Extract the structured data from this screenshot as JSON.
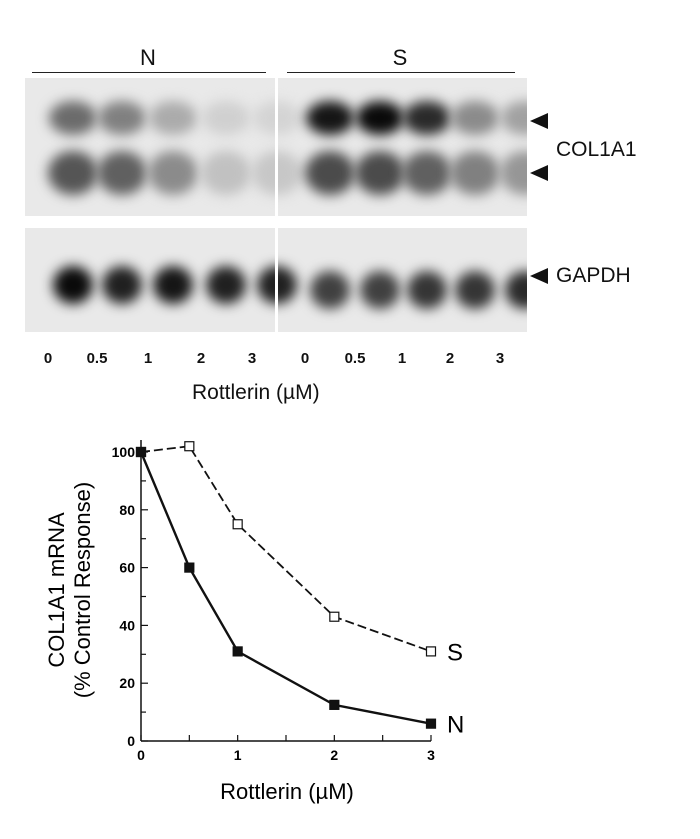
{
  "blot": {
    "groups": [
      {
        "label": "N"
      },
      {
        "label": "S"
      }
    ],
    "lane_labels": [
      "0",
      "0.5",
      "1",
      "2",
      "3",
      "0",
      "0.5",
      "1",
      "2",
      "3"
    ],
    "xlabel": "Rottlerin (µM)",
    "bands": {
      "col1a1_label": "COL1A1",
      "gapdh_label": "GAPDH"
    },
    "col1a1_intensity_upper": [
      0.55,
      0.45,
      0.25,
      0.08,
      0.06,
      0.95,
      1.0,
      0.85,
      0.4,
      0.3
    ],
    "col1a1_intensity_lower": [
      0.65,
      0.6,
      0.4,
      0.15,
      0.12,
      0.7,
      0.7,
      0.6,
      0.45,
      0.35
    ],
    "gapdh_intensity": [
      1.0,
      0.9,
      0.95,
      0.9,
      0.9,
      0.75,
      0.75,
      0.8,
      0.8,
      0.85
    ]
  },
  "chart_data": {
    "type": "line",
    "title": "",
    "xlabel": "Rottlerin (µM)",
    "ylabel": "COL1A1 mRNA (% Control Response)",
    "ylabel_line1": "COL1A1 mRNA",
    "ylabel_line2": "(% Control Response)",
    "x": [
      0,
      0.5,
      1,
      2,
      3
    ],
    "xlim": [
      0,
      3
    ],
    "ylim": [
      0,
      100
    ],
    "xticks": [
      "0",
      "1",
      "2",
      "3"
    ],
    "yticks": [
      "0",
      "20",
      "40",
      "60",
      "80",
      "100"
    ],
    "grid": false,
    "series": [
      {
        "name": "N",
        "values": [
          100,
          60,
          31,
          12.5,
          6
        ],
        "marker": "filled-square",
        "line": "solid"
      },
      {
        "name": "S",
        "values": [
          100,
          102,
          75,
          43,
          31
        ],
        "marker": "open-square",
        "line": "dashed"
      }
    ],
    "legend_position": "inline-right"
  }
}
